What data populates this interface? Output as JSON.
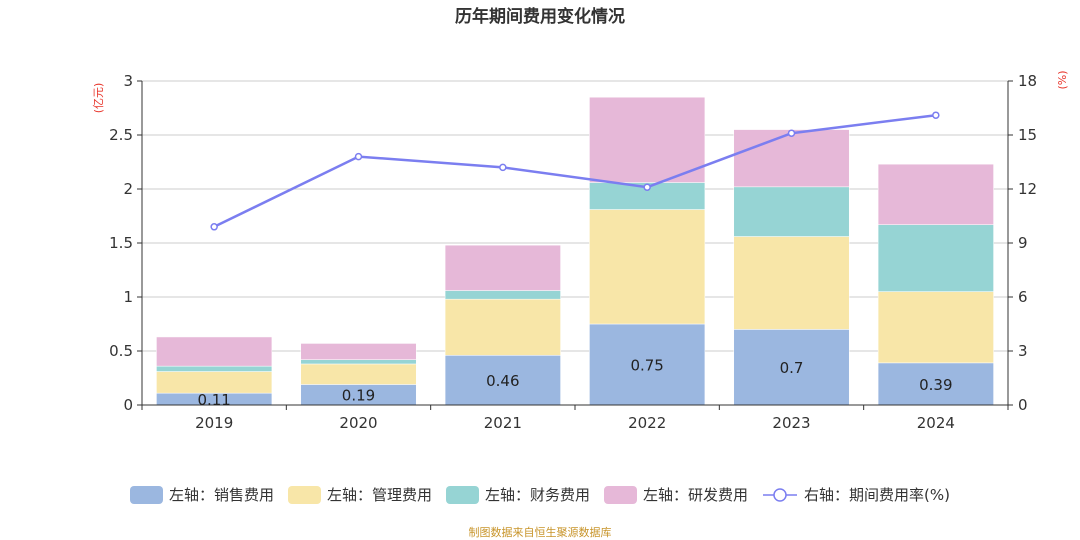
{
  "chart_data": {
    "type": "bar",
    "stacked": true,
    "title": "历年期间费用变化情况",
    "categories": [
      "2019",
      "2020",
      "2021",
      "2022",
      "2023",
      "2024"
    ],
    "left_axis": {
      "unit_label": "(亿元)",
      "ylim": [
        0,
        3
      ],
      "ticks": [
        "0",
        "0.5",
        "1",
        "1.5",
        "2",
        "2.5",
        "3"
      ],
      "tick_values": [
        0,
        0.5,
        1,
        1.5,
        2,
        2.5,
        3
      ]
    },
    "right_axis": {
      "unit_label": "(%)",
      "ylim": [
        0,
        18
      ],
      "ticks": [
        "0",
        "3",
        "6",
        "9",
        "12",
        "15",
        "18"
      ],
      "tick_values": [
        0,
        3,
        6,
        9,
        12,
        15,
        18
      ]
    },
    "grid": true,
    "legend_position": "bottom",
    "series": [
      {
        "name": "左轴：销售费用",
        "type": "bar",
        "axis": "left",
        "color": "#9bb7e0",
        "values": [
          0.11,
          0.19,
          0.46,
          0.75,
          0.7,
          0.39
        ],
        "show_labels": true
      },
      {
        "name": "左轴：管理费用",
        "type": "bar",
        "axis": "left",
        "color": "#f8e6a8",
        "values": [
          0.2,
          0.19,
          0.52,
          1.06,
          0.86,
          0.66
        ],
        "show_labels": false
      },
      {
        "name": "左轴：财务费用",
        "type": "bar",
        "axis": "left",
        "color": "#96d4d4",
        "values": [
          0.05,
          0.04,
          0.08,
          0.25,
          0.46,
          0.62
        ],
        "show_labels": false
      },
      {
        "name": "左轴：研发费用",
        "type": "bar",
        "axis": "left",
        "color": "#e6b8d8",
        "values": [
          0.27,
          0.15,
          0.42,
          0.79,
          0.53,
          0.56
        ],
        "show_labels": false
      },
      {
        "name": "右轴：期间费用率(%)",
        "type": "line",
        "axis": "right",
        "color": "#7b7ef0",
        "values": [
          9.9,
          13.8,
          13.2,
          12.1,
          15.1,
          16.1
        ]
      }
    ]
  },
  "legend": [
    {
      "label": "左轴：销售费用",
      "color": "#9bb7e0",
      "kind": "bar"
    },
    {
      "label": "左轴：管理费用",
      "color": "#f8e6a8",
      "kind": "bar"
    },
    {
      "label": "左轴：财务费用",
      "color": "#96d4d4",
      "kind": "bar"
    },
    {
      "label": "左轴：研发费用",
      "color": "#e6b8d8",
      "kind": "bar"
    },
    {
      "label": "右轴：期间费用率(%)",
      "color": "#7b7ef0",
      "kind": "line"
    }
  ],
  "source_note": "制图数据来自恒生聚源数据库"
}
